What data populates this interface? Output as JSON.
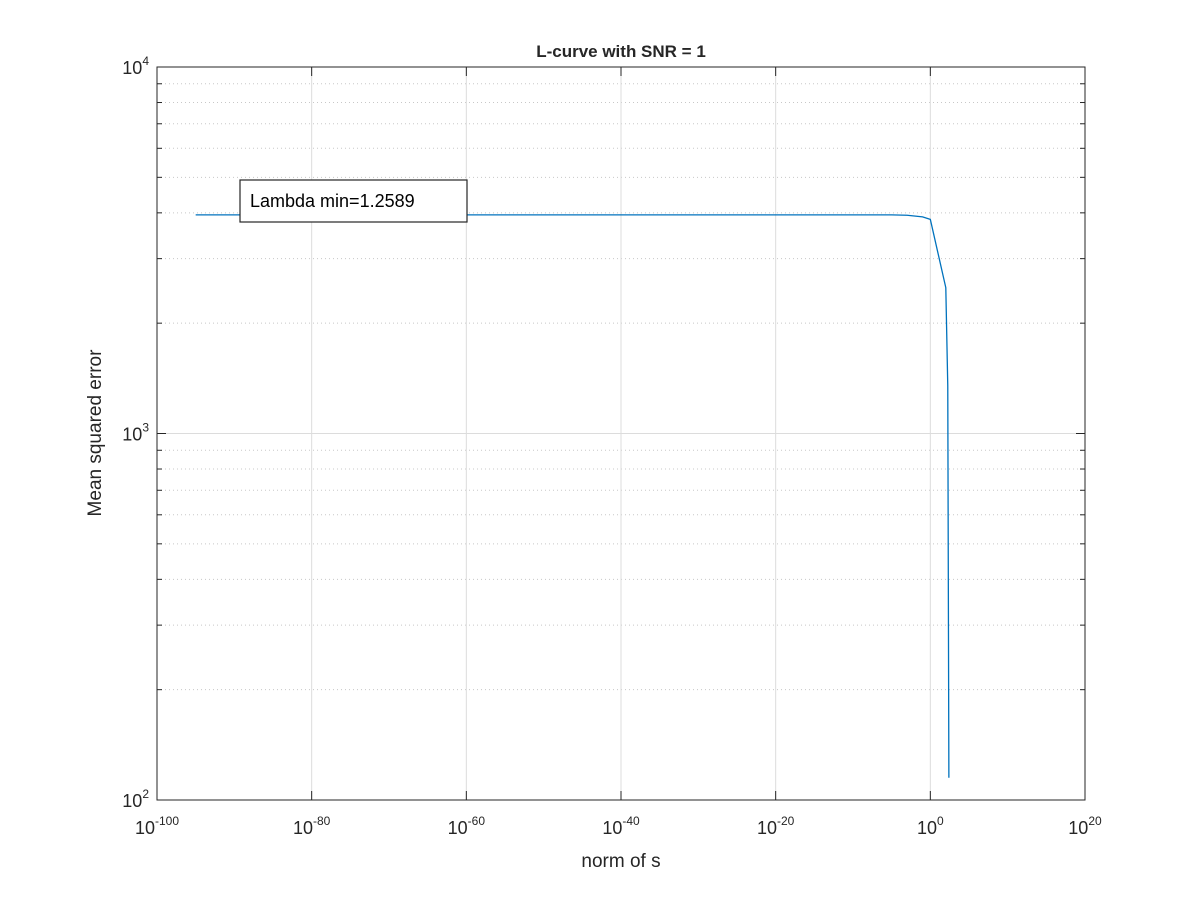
{
  "chart_data": {
    "type": "line",
    "title": "L-curve with SNR = 1",
    "xlabel": "norm of s",
    "ylabel": "Mean squared error",
    "xscale": "log",
    "yscale": "log",
    "xlim": [
      1e-100,
      1e+20
    ],
    "ylim": [
      100,
      10000
    ],
    "grid": true,
    "x_ticks": [
      {
        "base": "10",
        "exp": "-100"
      },
      {
        "base": "10",
        "exp": "-80"
      },
      {
        "base": "10",
        "exp": "-60"
      },
      {
        "base": "10",
        "exp": "-40"
      },
      {
        "base": "10",
        "exp": "-20"
      },
      {
        "base": "10",
        "exp": "0"
      },
      {
        "base": "10",
        "exp": "20"
      }
    ],
    "y_ticks": [
      {
        "base": "10",
        "exp": "2"
      },
      {
        "base": "10",
        "exp": "3"
      },
      {
        "base": "10",
        "exp": "4"
      }
    ],
    "series": [
      {
        "color": "#0072BD",
        "x": [
          1e-95,
          1e-80,
          1e-60,
          1e-40,
          1e-20,
          1e-05,
          0.001,
          0.1,
          1,
          100.0,
          180.0,
          250.0
        ],
        "y": [
          3950,
          3950,
          3950,
          3950,
          3950,
          3950,
          3940,
          3900,
          3840,
          2500,
          1350,
          115
        ]
      }
    ],
    "annotation": {
      "text": "Lambda min=1.2589"
    }
  }
}
